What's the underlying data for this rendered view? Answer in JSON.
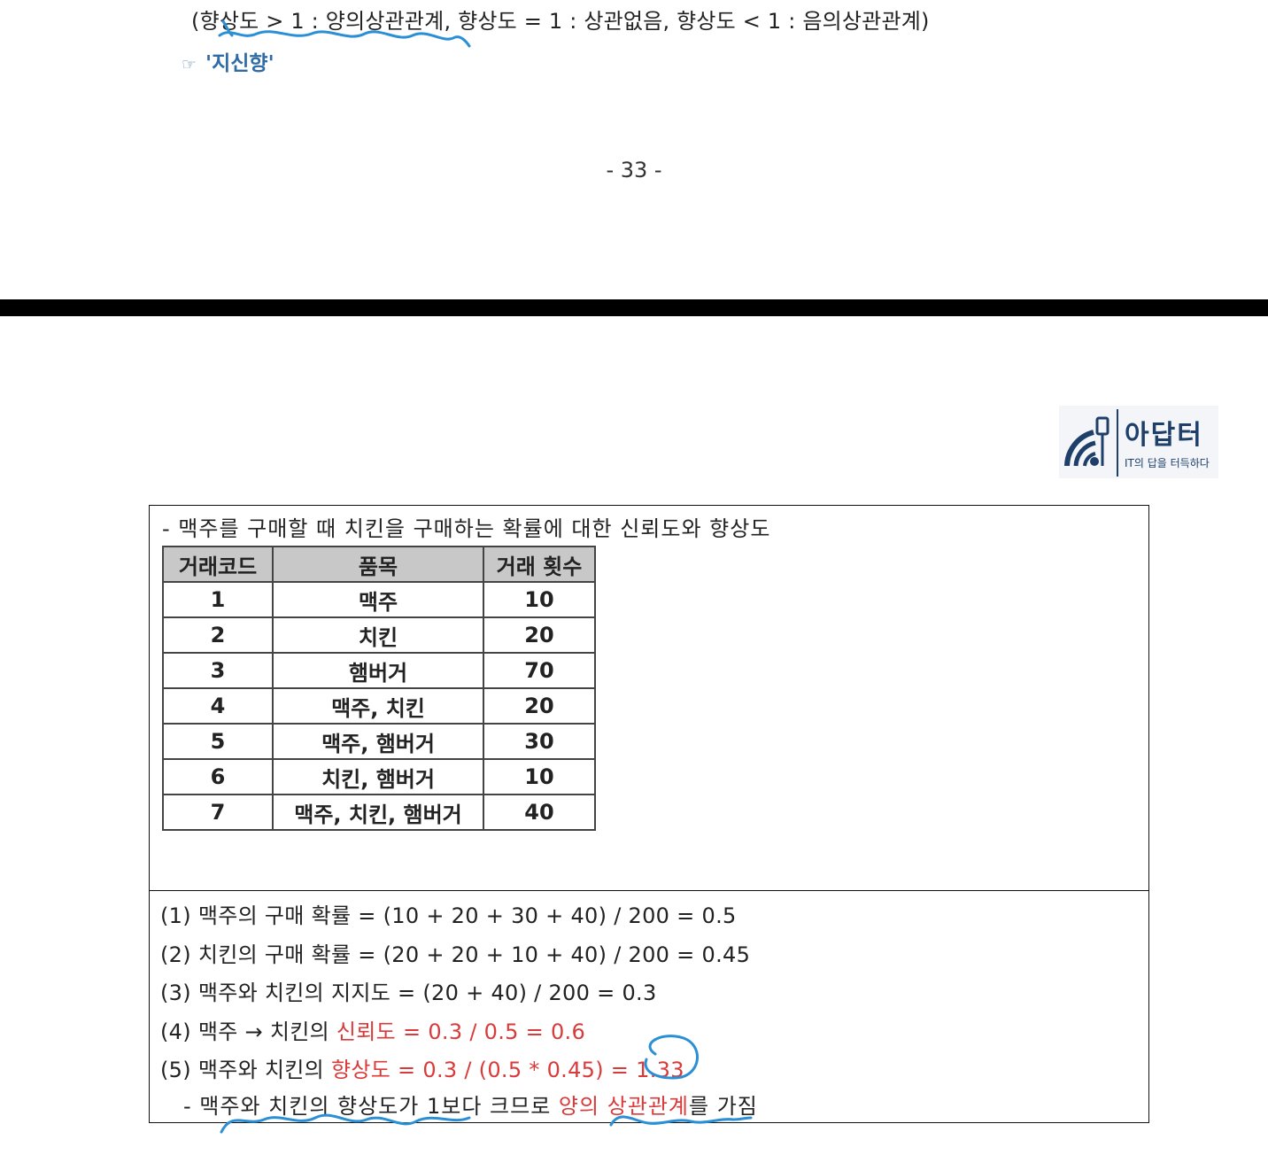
{
  "top": {
    "definition_line": "(향상도 > 1 : 양의상관관계, 향상도 = 1 : 상관없음, 향상도 < 1 : 음의상관관계)",
    "pointer_glyph": "☞",
    "note": "'지신향'"
  },
  "page_number": "- 33 -",
  "logo": {
    "name": "아답터",
    "slogan": "IT의 답을 터득하다"
  },
  "box": {
    "heading": "- 맥주를 구매할 때 치킨을 구매하는 확률에 대한 신뢰도와 향상도",
    "table": {
      "headers": [
        "거래코드",
        "품목",
        "거래 횟수"
      ],
      "rows": [
        [
          "1",
          "맥주",
          "10"
        ],
        [
          "2",
          "치킨",
          "20"
        ],
        [
          "3",
          "햄버거",
          "70"
        ],
        [
          "4",
          "맥주, 치킨",
          "20"
        ],
        [
          "5",
          "맥주, 햄버거",
          "30"
        ],
        [
          "6",
          "치킨, 햄버거",
          "10"
        ],
        [
          "7",
          "맥주, 치킨, 햄버거",
          "40"
        ]
      ]
    },
    "calculations": [
      {
        "prefix": "(1) 맥주의 구매 확률 = (10 + 20 + 30 + 40) / 200 = 0.5",
        "highlight": ""
      },
      {
        "prefix": "(2) 치킨의 구매 확률 = (20 + 20 + 10 + 40) / 200 = 0.45",
        "highlight": ""
      },
      {
        "prefix": "(3) 맥주와 치킨의 지지도 = (20 + 40) / 200 = 0.3",
        "highlight": ""
      },
      {
        "prefix": "(4) 맥주 → 치킨의 ",
        "highlight": "신뢰도 = 0.3 / 0.5 = 0.6"
      },
      {
        "prefix": "(5) 맥주와 치킨의 ",
        "highlight": "향상도 = 0.3 / (0.5 * 0.45) = 1.33"
      }
    ],
    "conclusion": {
      "before": "- 맥주와 치킨의 향상도가 1보다 크므로 ",
      "highlight": "양의 상관관계",
      "after": "를 가짐"
    }
  },
  "colors": {
    "highlight": "#d93a3a",
    "annotation_ink": "#2b8fd6",
    "note_blue": "#2f6ba6",
    "logo_navy": "#1d3f6a",
    "table_header": "#c8c8c8"
  }
}
